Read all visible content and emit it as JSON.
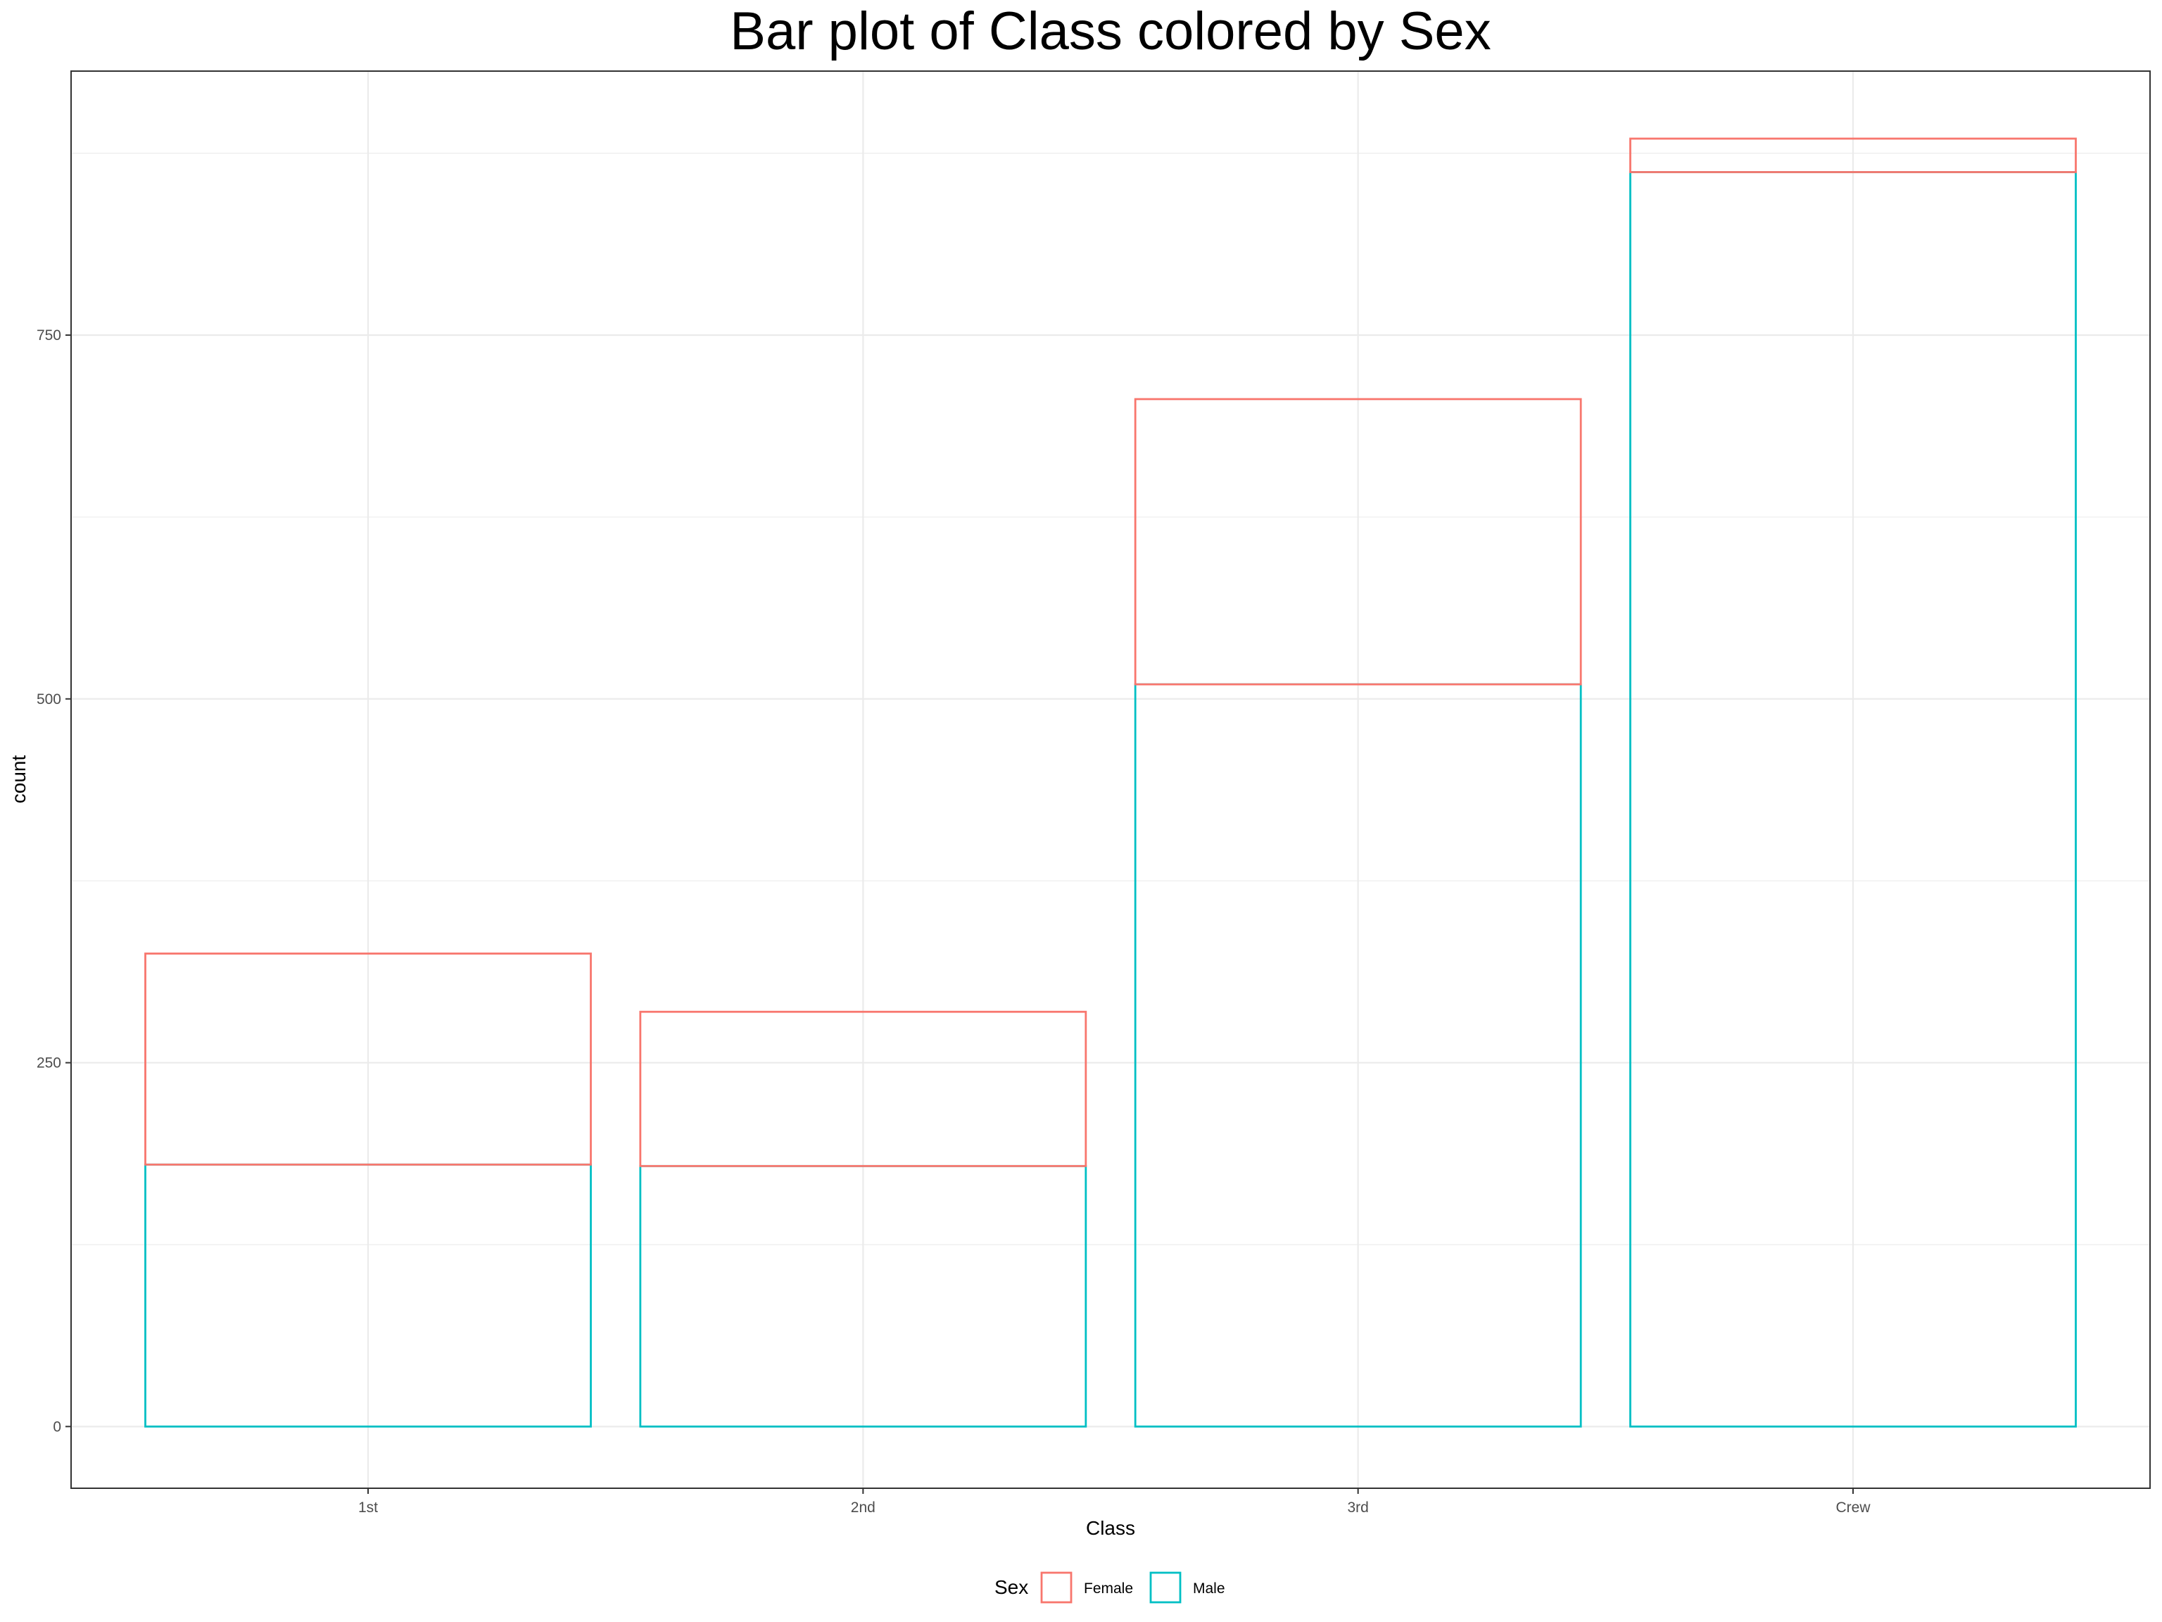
{
  "chart_data": {
    "type": "bar",
    "stacked": true,
    "bar_fill": "none",
    "title": "Bar plot of Class colored by Sex",
    "xlabel": "Class",
    "ylabel": "count",
    "categories": [
      "1st",
      "2nd",
      "3rd",
      "Crew"
    ],
    "series": [
      {
        "name": "Female",
        "color": "#F8766D",
        "values": [
          145,
          106,
          196,
          23
        ]
      },
      {
        "name": "Male",
        "color": "#00BFC4",
        "values": [
          180,
          179,
          510,
          862
        ]
      }
    ],
    "ylim": [
      -42.4,
      931.4
    ],
    "yticks": [
      0,
      250,
      500,
      750
    ],
    "yticks_minor": [
      125,
      375,
      625,
      875
    ],
    "grid": true,
    "legend": {
      "title": "Sex",
      "position": "bottom",
      "entries": [
        "Female",
        "Male"
      ]
    }
  }
}
